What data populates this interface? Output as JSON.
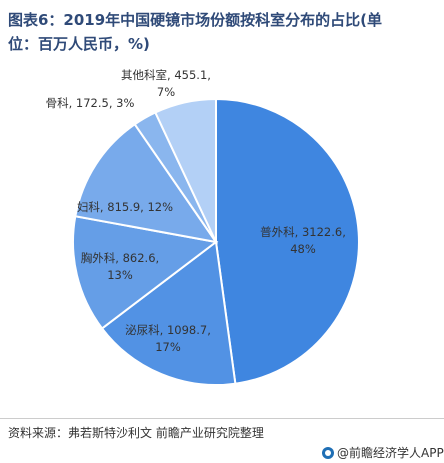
{
  "title": "图表6：2019年中国硬镜市场份额按科室分布的占比(单\n位：百万人民币，%)",
  "chart_data": {
    "type": "pie",
    "slices": [
      {
        "label": "普外科, 3122.6, 48%",
        "value": 3122.6,
        "percent": 48,
        "color": "#3f86e0"
      },
      {
        "label": "泌尿科, 1098.7, 17%",
        "value": 1098.7,
        "percent": 17,
        "color": "#5292e4"
      },
      {
        "label": "胸外科, 862.6, 13%",
        "value": 862.6,
        "percent": 13,
        "color": "#659ee7"
      },
      {
        "label": "妇科, 815.9, 12%",
        "value": 815.9,
        "percent": 12,
        "color": "#78aaeb"
      },
      {
        "label": "骨科, 172.5, 3%",
        "value": 172.5,
        "percent": 3,
        "color": "#8ab6ee"
      },
      {
        "label": "其他科室, 455.1, 7%",
        "value": 455.1,
        "percent": 7,
        "color": "#b3d0f6"
      }
    ]
  },
  "footer": {
    "source": "资料来源：弗若斯特沙利文 前瞻产业研究院整理",
    "brand": "@前瞻经济学人APP"
  }
}
